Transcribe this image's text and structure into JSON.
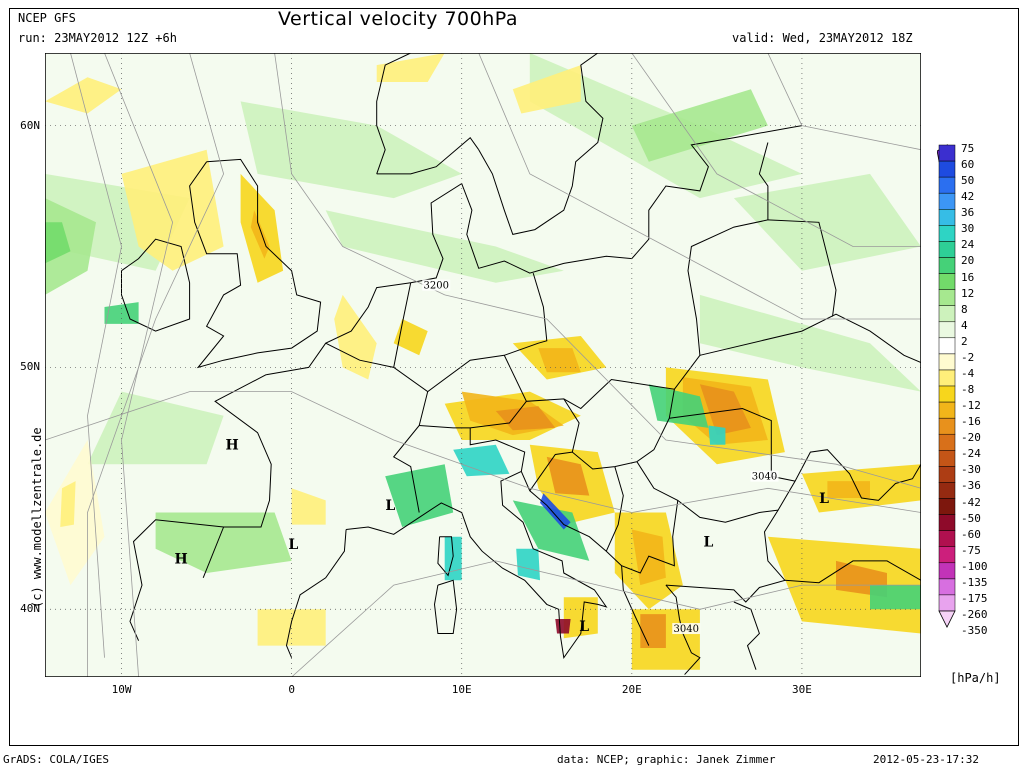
{
  "header": {
    "model": "NCEP GFS",
    "run": "run: 23MAY2012 12Z +6h",
    "title": "Vertical velocity 700hPa",
    "valid": "valid: Wed, 23MAY2012 18Z"
  },
  "footer": {
    "left": "GrADS: COLA/IGES",
    "center": "data: NCEP; graphic: Janek Zimmer",
    "right": "2012-05-23-17:32"
  },
  "copyright": "(c) www.modellzentrale.de",
  "chart_data": {
    "type": "heatmap",
    "title": "Vertical velocity 700hPa",
    "units": "[hPa/h]",
    "y_ticks": [
      "60N",
      "50N",
      "40N"
    ],
    "x_ticks": [
      "10W",
      "0",
      "10E",
      "20E",
      "30E"
    ],
    "lon_range": [
      -14.5,
      37.0
    ],
    "lat_range": [
      37.2,
      63.0
    ],
    "colorbar": {
      "labels": [
        "75",
        "60",
        "50",
        "42",
        "36",
        "30",
        "24",
        "20",
        "16",
        "12",
        "8",
        "4",
        "2",
        "-2",
        "-4",
        "-8",
        "-12",
        "-16",
        "-20",
        "-24",
        "-30",
        "-36",
        "-42",
        "-50",
        "-60",
        "-75",
        "-100",
        "-135",
        "-175",
        "-260",
        "-350"
      ],
      "colors": [
        "#8a2be2",
        "#3b2fcf",
        "#1e4be0",
        "#2b6ff0",
        "#3c96f5",
        "#36bde6",
        "#2ed4c4",
        "#2ecf96",
        "#45d178",
        "#72db6a",
        "#a6e88f",
        "#cdf2bc",
        "#eaf9e1",
        "#ffffff",
        "#fffbd0",
        "#ffef7a",
        "#f7d61c",
        "#f2b51a",
        "#e8911c",
        "#d8701a",
        "#c45517",
        "#ad3d14",
        "#952a11",
        "#7d170d",
        "#8e0a2a",
        "#b0104f",
        "#cc1f7c",
        "#c233b8",
        "#d76fe0",
        "#e8a3ee",
        "#f6d3f7"
      ]
    },
    "pressure_systems": [
      {
        "label": "H",
        "lon": -3.5,
        "lat": 46.6
      },
      {
        "label": "H",
        "lon": -6.5,
        "lat": 41.9
      },
      {
        "label": "L",
        "lon": 5.8,
        "lat": 44.1
      },
      {
        "label": "L",
        "lon": 0.1,
        "lat": 42.5
      },
      {
        "label": "L",
        "lon": 24.5,
        "lat": 42.6
      },
      {
        "label": "L",
        "lon": 31.3,
        "lat": 44.4
      },
      {
        "label": "L",
        "lon": 17.2,
        "lat": 39.1
      }
    ],
    "contour_labels": [
      {
        "text": "3200",
        "lon": 8.5,
        "lat": 53.3
      },
      {
        "text": "3040",
        "lon": 27.8,
        "lat": 45.4
      },
      {
        "text": "3040",
        "lon": 23.2,
        "lat": 39.1
      }
    ]
  }
}
